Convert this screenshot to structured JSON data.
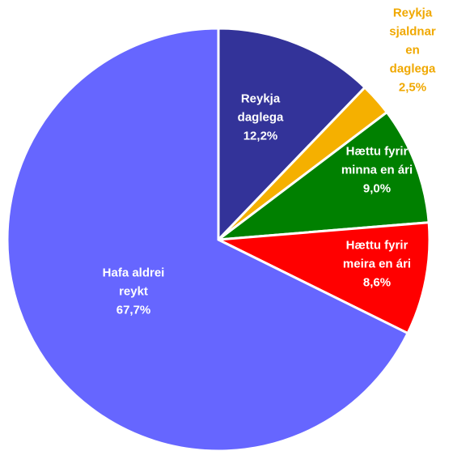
{
  "chart_data": {
    "type": "pie",
    "categories": [
      "Reykja\ndaglega",
      "Reykja\nsjaldnar en\ndaglega",
      "Hættu fyrir\nminna en ári",
      "Hættu fyrir\nmeira en ári",
      "Hafa aldrei\nreykt"
    ],
    "values": [
      12.2,
      2.5,
      9.0,
      8.6,
      67.7
    ],
    "value_labels": [
      "12,2%",
      "2,5%",
      "9,0%",
      "8,6%",
      "67,7%"
    ],
    "colors": [
      "#333399",
      "#f5b000",
      "#008000",
      "#ff0000",
      "#6666ff"
    ]
  }
}
